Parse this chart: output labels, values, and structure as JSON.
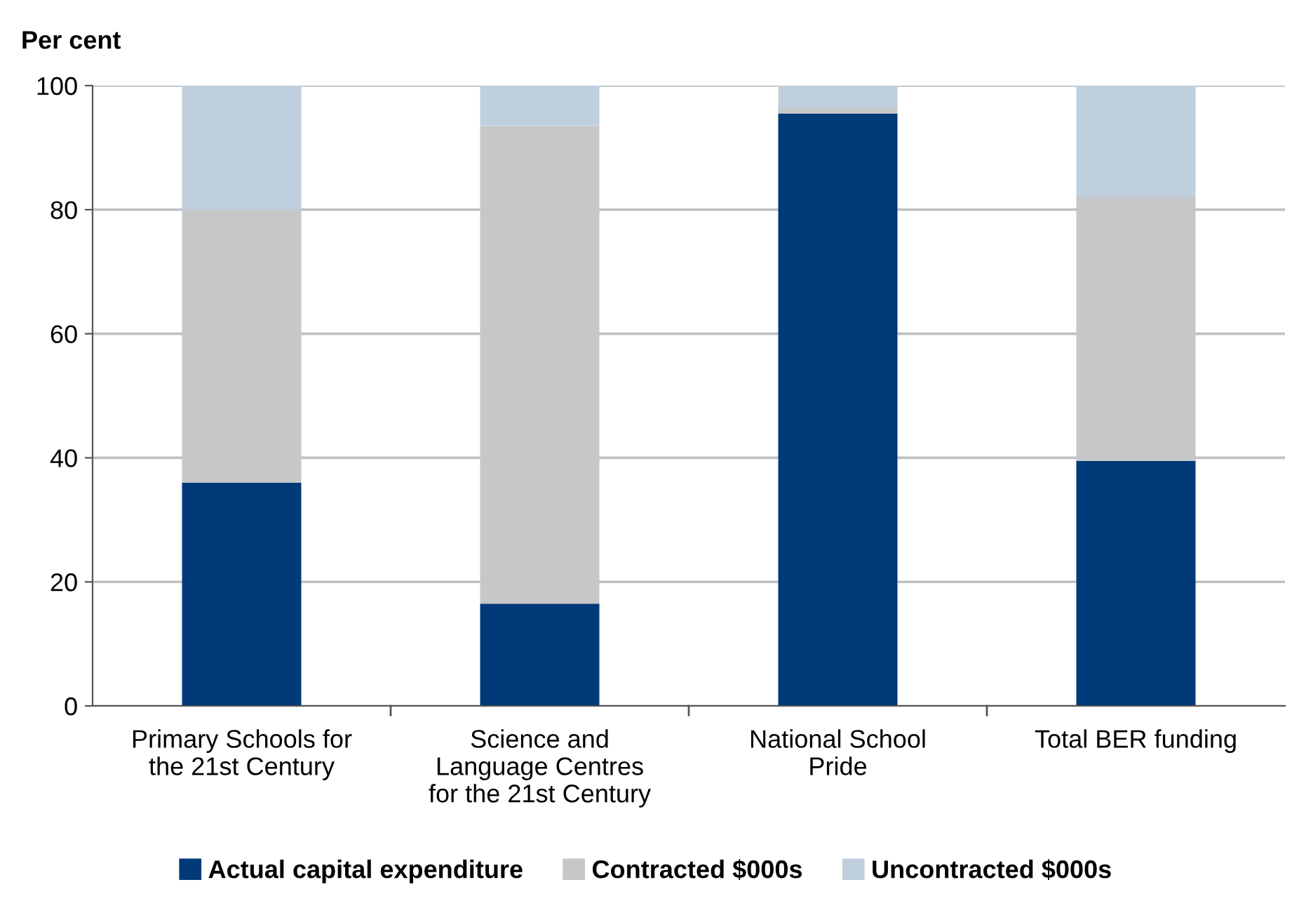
{
  "chart_data": {
    "type": "bar",
    "stacked": true,
    "ylabel": "Per cent",
    "categories": [
      "Primary Schools for\nthe 21st Century",
      "Science and\nLanguage Centres\nfor the 21st Century",
      "National School\nPride",
      "Total BER funding"
    ],
    "series": [
      {
        "name": "Actual capital expenditure",
        "color": "#003a78",
        "values": [
          36,
          16.5,
          95.5,
          39.5
        ]
      },
      {
        "name": "Contracted $000s",
        "color": "#c6c7c9",
        "values": [
          44,
          77,
          1,
          42.5
        ]
      },
      {
        "name": "Uncontracted $000s",
        "color": "#c0cfde",
        "values": [
          20,
          6.5,
          3.5,
          18
        ]
      }
    ],
    "ylim": [
      0,
      100
    ],
    "yticks": [
      0,
      20,
      40,
      60,
      80,
      100
    ],
    "grid": "y",
    "legend": "bottom"
  }
}
